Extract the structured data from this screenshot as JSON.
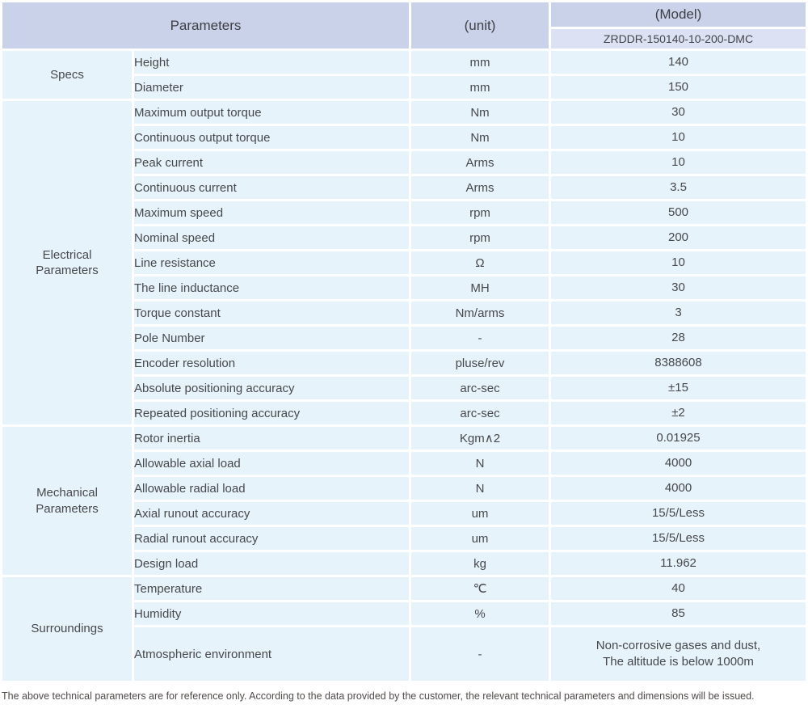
{
  "colors": {
    "header_bg": "#c9d2e9",
    "model_bg": "#dce2f3",
    "row_bg": "#e6f3fb",
    "text": "#47484b",
    "footer_text": "#4f4b4a"
  },
  "header": {
    "parameters_label": "Parameters",
    "unit_label": "(unit)",
    "model_label": "(Model)",
    "model_value": "ZRDDR-150140-10-200-DMC"
  },
  "table": {
    "groups": [
      {
        "label": "Specs",
        "rows": [
          {
            "parameter": "Height",
            "unit": "mm",
            "value": "140"
          },
          {
            "parameter": "Diameter",
            "unit": "mm",
            "value": "150"
          }
        ]
      },
      {
        "label": "Electrical\nParameters",
        "rows": [
          {
            "parameter": "Maximum output torque",
            "unit": "Nm",
            "value": "30"
          },
          {
            "parameter": "Continuous output torque",
            "unit": "Nm",
            "value": "10"
          },
          {
            "parameter": "Peak current",
            "unit": "Arms",
            "value": "10"
          },
          {
            "parameter": "Continuous current",
            "unit": "Arms",
            "value": "3.5"
          },
          {
            "parameter": "Maximum speed",
            "unit": "rpm",
            "value": "500"
          },
          {
            "parameter": "Nominal speed",
            "unit": "rpm",
            "value": "200"
          },
          {
            "parameter": "Line resistance",
            "unit": "Ω",
            "value": "10"
          },
          {
            "parameter": "The line inductance",
            "unit": "MH",
            "value": "30"
          },
          {
            "parameter": "Torque constant",
            "unit": "Nm/arms",
            "value": "3"
          },
          {
            "parameter": "Pole Number",
            "unit": "-",
            "value": "28"
          },
          {
            "parameter": "Encoder resolution",
            "unit": "pluse/rev",
            "value": "8388608"
          },
          {
            "parameter": "Absolute positioning accuracy",
            "unit": "arc-sec",
            "value": "±15"
          },
          {
            "parameter": "Repeated positioning accuracy",
            "unit": "arc-sec",
            "value": "±2"
          }
        ]
      },
      {
        "label": "Mechanical\nParameters",
        "rows": [
          {
            "parameter": "Rotor inertia",
            "unit": "Kgm∧2",
            "value": "0.01925"
          },
          {
            "parameter": "Allowable axial load",
            "unit": "N",
            "value": "4000"
          },
          {
            "parameter": "Allowable radial load",
            "unit": "N",
            "value": "4000"
          },
          {
            "parameter": "Axial runout accuracy",
            "unit": "um",
            "value": "15/5/Less"
          },
          {
            "parameter": "Radial runout accuracy",
            "unit": "um",
            "value": "15/5/Less"
          },
          {
            "parameter": "Design load",
            "unit": "kg",
            "value": "11.962"
          }
        ]
      },
      {
        "label": "Surroundings",
        "rows": [
          {
            "parameter": "Temperature",
            "unit": "℃",
            "value": "40"
          },
          {
            "parameter": "Humidity",
            "unit": "%",
            "value": "85"
          },
          {
            "parameter": "Atmospheric environment",
            "unit": "-",
            "value": "Non-corrosive gases and dust,\nThe altitude is below 1000m"
          }
        ]
      }
    ]
  },
  "footer": {
    "note": "The above technical parameters are for reference only. According to the data provided by the customer, the relevant technical parameters and dimensions will be issued."
  }
}
